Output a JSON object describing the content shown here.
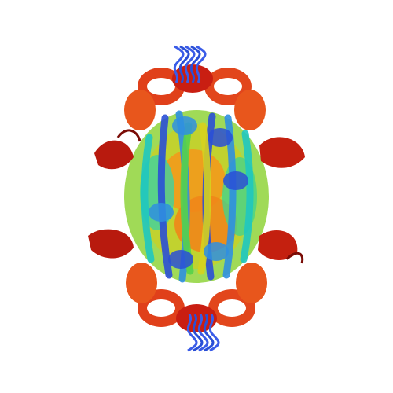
{
  "image": {
    "subject": "protein-structure-ribbon-render",
    "background": "#ffffff",
    "palette": {
      "blue": "#2a4fd6",
      "sky": "#2f8fe0",
      "cyan": "#1fc6c0",
      "green": "#56d14a",
      "yellow": "#d6d21e",
      "orange": "#f2861c",
      "red_orange": "#e8471c",
      "red": "#c81e10"
    }
  }
}
